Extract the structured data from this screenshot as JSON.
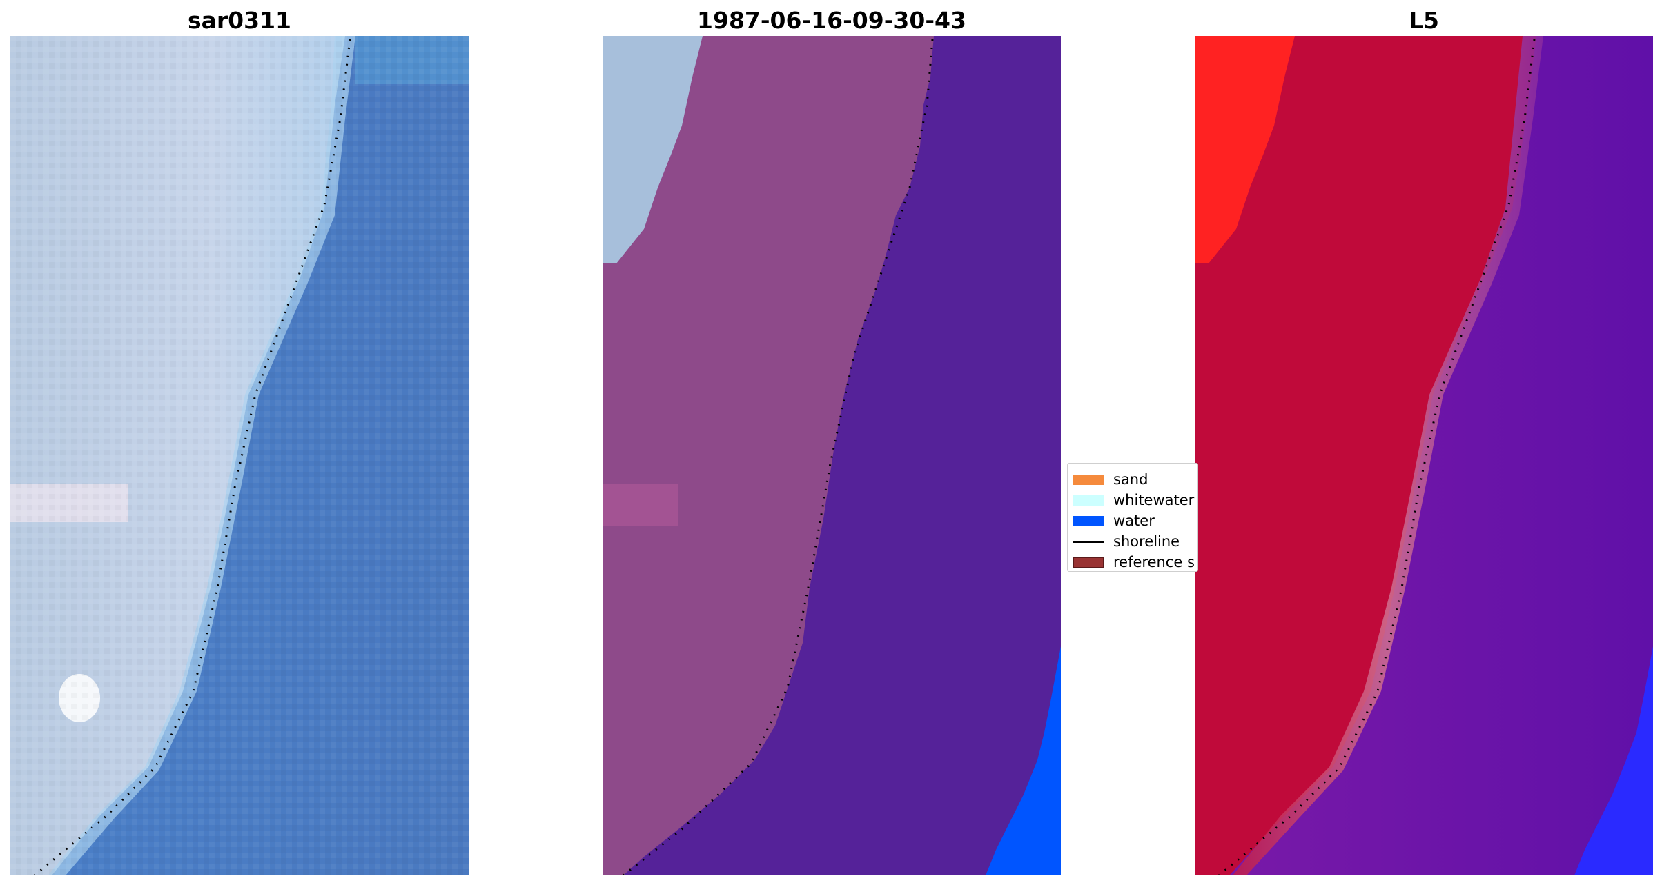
{
  "panels": [
    {
      "title": "sar0311",
      "kind": "rgb"
    },
    {
      "title": "1987-06-16-09-30-43",
      "kind": "classified"
    },
    {
      "title": "L5",
      "kind": "index"
    }
  ],
  "legend": [
    {
      "label": "sand",
      "color": "#f58a3c",
      "type": "patch"
    },
    {
      "label": "whitewater",
      "color": "#ccffff",
      "type": "patch"
    },
    {
      "label": "water",
      "color": "#0055ff",
      "type": "patch"
    },
    {
      "label": "shoreline",
      "color": "#000000",
      "type": "line"
    },
    {
      "label": "reference s",
      "color": "#993333",
      "type": "patch"
    }
  ],
  "colors": {
    "shoreline": "#000000",
    "rgb_water": "#4a7dc4",
    "rgb_land": "#c3d3e8",
    "classified_land": "#8e4a8a",
    "classified_water": "#552299",
    "classified_whitewater": "#a7bfdb",
    "classified_water_class": "#0055ff",
    "index_land": "#c00a3a",
    "index_water": "#6a14a6",
    "index_bright": "#ff2222",
    "index_blue": "#2a2aff"
  }
}
